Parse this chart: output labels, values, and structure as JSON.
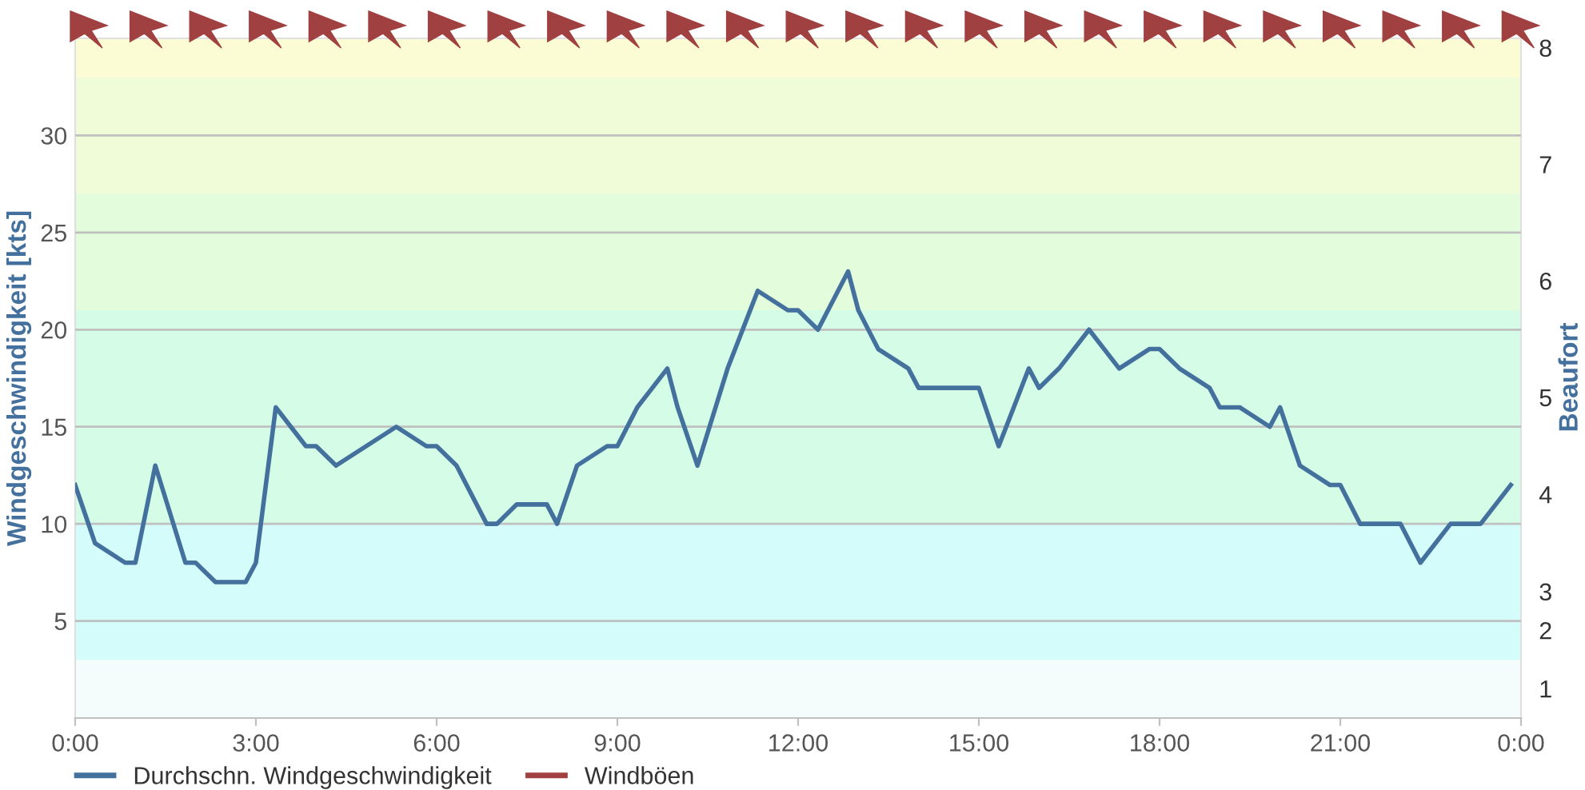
{
  "chart_data": {
    "type": "line",
    "xlabel": null,
    "ylabel": "Windgeschwindigkeit [kts]",
    "y2label": "Beaufort",
    "x": [
      0,
      0.33,
      0.83,
      1,
      1.33,
      1.83,
      2,
      2.33,
      2.83,
      3,
      3.33,
      3.83,
      4,
      4.33,
      5.33,
      5.83,
      6,
      6.33,
      6.83,
      7,
      7.33,
      7.83,
      8,
      8.33,
      8.83,
      9,
      9.33,
      9.83,
      10,
      10.33,
      10.83,
      11.33,
      11.83,
      12,
      12.33,
      12.83,
      13,
      13.33,
      13.83,
      14,
      15,
      15.33,
      15.83,
      16,
      16.33,
      16.83,
      17.33,
      17.83,
      18,
      18.33,
      18.83,
      19,
      19.33,
      19.83,
      20,
      20.33,
      20.83,
      21,
      21.33,
      22,
      22.33,
      22.83,
      23.33,
      23.83
    ],
    "series": [
      {
        "name": "Durchschn. Windgeschwindigkeit",
        "color": "#44709d",
        "values": [
          12,
          9,
          8,
          8,
          13,
          8,
          8,
          7,
          7,
          8,
          16,
          14,
          14,
          13,
          15,
          14,
          14,
          13,
          10,
          10,
          11,
          11,
          10,
          13,
          14,
          14,
          16,
          18,
          16,
          13,
          18,
          22,
          21,
          21,
          20,
          23,
          21,
          19,
          18,
          17,
          17,
          14,
          18,
          17,
          18,
          20,
          18,
          19,
          19,
          18,
          17,
          16,
          16,
          15,
          16,
          13,
          12,
          12,
          10,
          10,
          8,
          10,
          10,
          12
        ]
      },
      {
        "name": "Windböen",
        "color": "#a04040",
        "values": [
          null,
          null,
          null,
          null,
          null,
          null,
          null,
          null,
          null,
          null,
          null,
          null,
          null,
          null,
          null,
          null,
          null,
          null,
          null,
          null,
          null,
          null,
          null,
          null,
          null,
          null,
          null,
          null,
          null,
          null,
          null,
          null,
          null,
          null,
          null,
          null,
          null,
          null,
          null,
          null,
          null,
          null,
          null,
          null,
          null,
          null,
          null,
          null,
          null,
          null,
          null,
          null,
          null,
          null,
          null,
          null,
          null,
          null,
          null,
          null,
          null,
          null,
          null,
          null
        ]
      }
    ],
    "xlim": [
      0,
      24
    ],
    "xticks": [
      {
        "value": 0,
        "label": "0:00"
      },
      {
        "value": 3,
        "label": "3:00"
      },
      {
        "value": 6,
        "label": "6:00"
      },
      {
        "value": 9,
        "label": "9:00"
      },
      {
        "value": 12,
        "label": "12:00"
      },
      {
        "value": 15,
        "label": "15:00"
      },
      {
        "value": 18,
        "label": "18:00"
      },
      {
        "value": 21,
        "label": "21:00"
      },
      {
        "value": 24,
        "label": "0:00"
      }
    ],
    "ylim": [
      0,
      35
    ],
    "yticks": [
      5,
      10,
      15,
      20,
      25,
      30
    ],
    "bands": [
      {
        "axis": "y",
        "from": 0,
        "to": 3,
        "color": "#f4fcfc",
        "label": "1"
      },
      {
        "axis": "y",
        "from": 3,
        "to": 5,
        "color": "#d4fcfa",
        "label": "2"
      },
      {
        "axis": "y",
        "from": 5,
        "to": 10,
        "color": "#d4fcfa",
        "label": "3"
      },
      {
        "axis": "y",
        "from": 10,
        "to": 15,
        "color": "#d4fce6",
        "label": "4"
      },
      {
        "axis": "y",
        "from": 15,
        "to": 21,
        "color": "#d4fce6",
        "label": "5"
      },
      {
        "axis": "y",
        "from": 21,
        "to": 27,
        "color": "#e2fcdc",
        "label": "6"
      },
      {
        "axis": "y",
        "from": 27,
        "to": 33,
        "color": "#f0fcd8",
        "label": "7"
      },
      {
        "axis": "y",
        "from": 33,
        "to": 35,
        "color": "#fcfcd4",
        "label": "8"
      }
    ],
    "grid": "y",
    "legend": "bottom left",
    "marker": "none",
    "line_style": "solid"
  }
}
